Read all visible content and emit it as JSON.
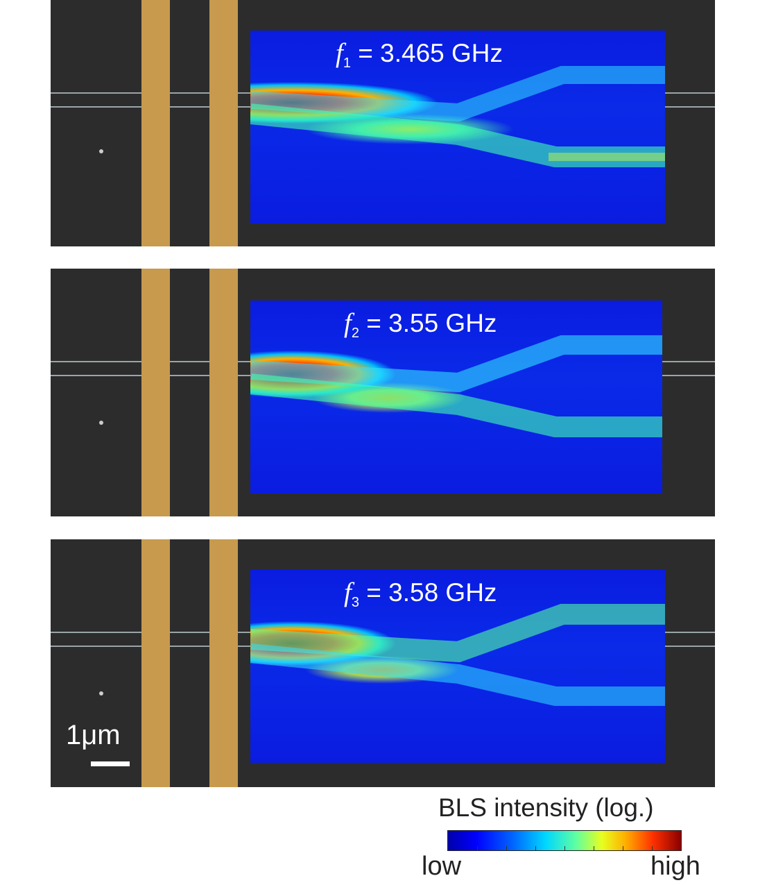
{
  "panels": [
    {
      "symbol": "f",
      "subscript": "1",
      "value_text": " = 3.465 GHz"
    },
    {
      "symbol": "f",
      "subscript": "2",
      "value_text": " = 3.55 GHz"
    },
    {
      "symbol": "f",
      "subscript": "3",
      "value_text": " = 3.58 GHz"
    }
  ],
  "scale_bar": {
    "label": "1μm"
  },
  "legend": {
    "title": "BLS intensity (log.)",
    "low_label": "low",
    "high_label": "high"
  },
  "colors": {
    "background": "#2c2c2c",
    "electrode": "#c79a4e",
    "waveguide": "#9aa5a8"
  }
}
